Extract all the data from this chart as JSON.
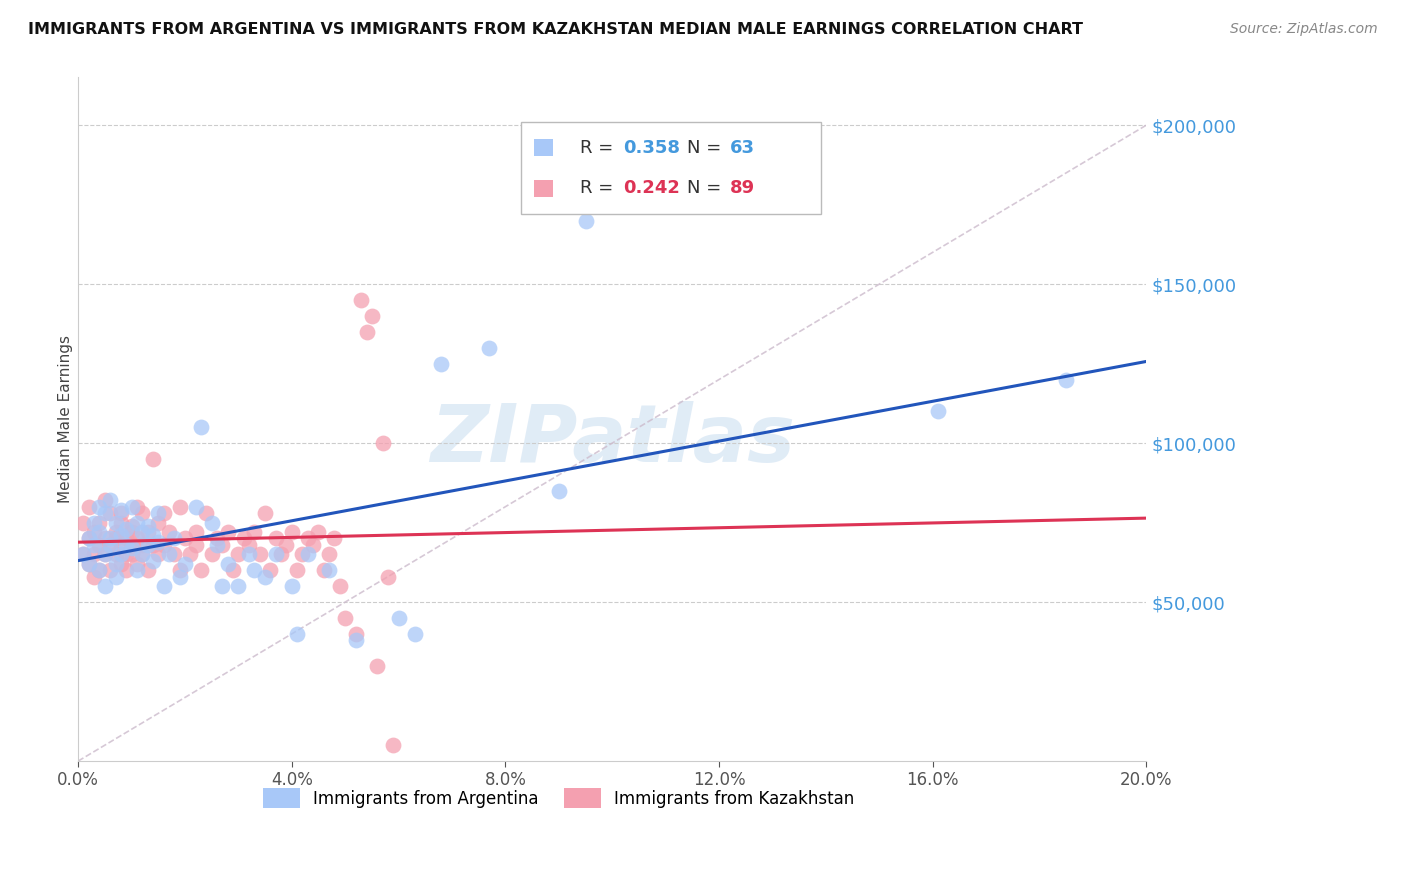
{
  "title": "IMMIGRANTS FROM ARGENTINA VS IMMIGRANTS FROM KAZAKHSTAN MEDIAN MALE EARNINGS CORRELATION CHART",
  "source": "Source: ZipAtlas.com",
  "ylabel": "Median Male Earnings",
  "ytick_values": [
    50000,
    100000,
    150000,
    200000
  ],
  "argentina_R": 0.358,
  "argentina_N": 63,
  "kazakhstan_R": 0.242,
  "kazakhstan_N": 89,
  "argentina_color": "#a8c8f8",
  "kazakhstan_color": "#f4a0b0",
  "argentina_line_color": "#2255bb",
  "kazakhstan_line_color": "#dd3355",
  "xlim": [
    0.0,
    0.2
  ],
  "ylim": [
    0.0,
    215000
  ],
  "argentina_x": [
    0.001,
    0.002,
    0.002,
    0.003,
    0.003,
    0.004,
    0.004,
    0.004,
    0.005,
    0.005,
    0.005,
    0.006,
    0.006,
    0.006,
    0.007,
    0.007,
    0.007,
    0.008,
    0.008,
    0.008,
    0.009,
    0.009,
    0.01,
    0.01,
    0.011,
    0.011,
    0.012,
    0.012,
    0.013,
    0.013,
    0.014,
    0.014,
    0.015,
    0.015,
    0.016,
    0.017,
    0.018,
    0.019,
    0.02,
    0.022,
    0.023,
    0.025,
    0.026,
    0.027,
    0.028,
    0.03,
    0.032,
    0.033,
    0.035,
    0.037,
    0.04,
    0.041,
    0.043,
    0.047,
    0.052,
    0.06,
    0.063,
    0.068,
    0.077,
    0.09,
    0.095,
    0.161,
    0.185
  ],
  "argentina_y": [
    65000,
    70000,
    62000,
    68000,
    75000,
    80000,
    72000,
    60000,
    55000,
    78000,
    65000,
    82000,
    70000,
    68000,
    75000,
    62000,
    58000,
    79000,
    65000,
    71000,
    68000,
    73000,
    80000,
    67000,
    75000,
    60000,
    72000,
    65000,
    68000,
    74000,
    71000,
    63000,
    78000,
    69000,
    55000,
    65000,
    70000,
    58000,
    62000,
    80000,
    105000,
    75000,
    68000,
    55000,
    62000,
    55000,
    65000,
    60000,
    58000,
    65000,
    55000,
    40000,
    65000,
    60000,
    38000,
    45000,
    40000,
    125000,
    130000,
    85000,
    170000,
    110000,
    120000
  ],
  "kazakhstan_x": [
    0.001,
    0.001,
    0.002,
    0.002,
    0.002,
    0.003,
    0.003,
    0.003,
    0.004,
    0.004,
    0.004,
    0.005,
    0.005,
    0.005,
    0.006,
    0.006,
    0.006,
    0.007,
    0.007,
    0.007,
    0.008,
    0.008,
    0.008,
    0.008,
    0.009,
    0.009,
    0.009,
    0.01,
    0.01,
    0.01,
    0.01,
    0.011,
    0.011,
    0.011,
    0.012,
    0.012,
    0.012,
    0.013,
    0.013,
    0.014,
    0.014,
    0.015,
    0.015,
    0.016,
    0.016,
    0.017,
    0.018,
    0.019,
    0.019,
    0.02,
    0.021,
    0.022,
    0.022,
    0.023,
    0.024,
    0.025,
    0.026,
    0.027,
    0.028,
    0.029,
    0.03,
    0.031,
    0.032,
    0.033,
    0.034,
    0.035,
    0.036,
    0.037,
    0.038,
    0.039,
    0.04,
    0.041,
    0.042,
    0.043,
    0.044,
    0.045,
    0.046,
    0.047,
    0.048,
    0.049,
    0.05,
    0.052,
    0.053,
    0.054,
    0.055,
    0.056,
    0.057,
    0.058,
    0.059
  ],
  "kazakhstan_y": [
    75000,
    65000,
    80000,
    70000,
    62000,
    72000,
    65000,
    58000,
    68000,
    75000,
    60000,
    82000,
    70000,
    65000,
    78000,
    68000,
    60000,
    72000,
    65000,
    70000,
    75000,
    68000,
    62000,
    78000,
    65000,
    70000,
    60000,
    74000,
    68000,
    72000,
    65000,
    80000,
    70000,
    62000,
    78000,
    68000,
    65000,
    72000,
    60000,
    95000,
    68000,
    75000,
    65000,
    78000,
    68000,
    72000,
    65000,
    80000,
    60000,
    70000,
    65000,
    72000,
    68000,
    60000,
    78000,
    65000,
    70000,
    68000,
    72000,
    60000,
    65000,
    70000,
    68000,
    72000,
    65000,
    78000,
    60000,
    70000,
    65000,
    68000,
    72000,
    60000,
    65000,
    70000,
    68000,
    72000,
    60000,
    65000,
    70000,
    55000,
    45000,
    40000,
    145000,
    135000,
    140000,
    30000,
    100000,
    58000,
    5000
  ]
}
